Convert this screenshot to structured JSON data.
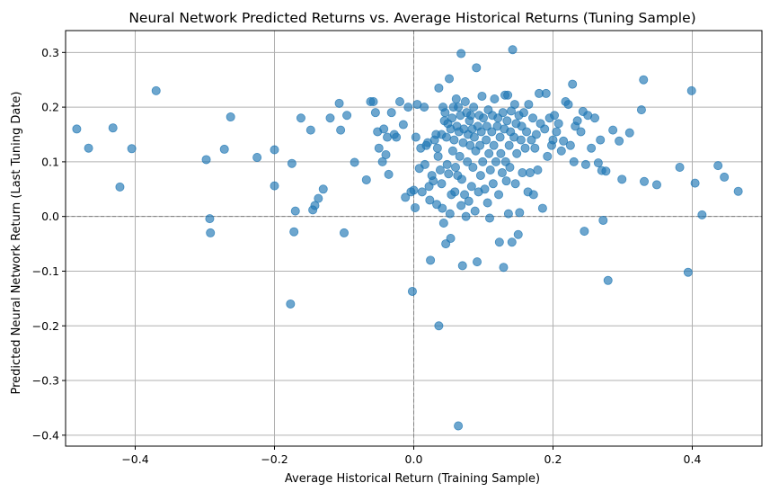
{
  "chart_data": {
    "type": "scatter",
    "title": "Neural Network Predicted Returns vs. Average Historical Returns (Tuning Sample)",
    "xlabel": "Average Historical Return (Training Sample)",
    "ylabel": "Predicted Neural Network Return (Last Tuning Date)",
    "xlim": [
      -0.5,
      0.5
    ],
    "ylim": [
      -0.42,
      0.34
    ],
    "xticks": [
      -0.4,
      -0.2,
      0.0,
      0.2,
      0.4
    ],
    "yticks": [
      -0.4,
      -0.3,
      -0.2,
      -0.1,
      0.0,
      0.1,
      0.2,
      0.3
    ],
    "xtick_labels": [
      "−0.4",
      "−0.2",
      "0.0",
      "0.2",
      "0.4"
    ],
    "ytick_labels": [
      "−0.4",
      "−0.3",
      "−0.2",
      "−0.1",
      "0.0",
      "0.1",
      "0.2",
      "0.3"
    ],
    "grid": true,
    "reference_lines": {
      "x": 0.0,
      "y": 0.0,
      "style": "dashed"
    },
    "colors": {
      "marker": "#1f77b4",
      "grid": "#b0b0b0",
      "reference": "#808080"
    },
    "marker_alpha": 0.65,
    "points": [
      [
        -0.484,
        0.16
      ],
      [
        -0.467,
        0.125
      ],
      [
        -0.432,
        0.162
      ],
      [
        -0.422,
        0.054
      ],
      [
        -0.405,
        0.124
      ],
      [
        -0.37,
        0.23
      ],
      [
        -0.298,
        0.104
      ],
      [
        -0.293,
        -0.004
      ],
      [
        -0.292,
        -0.03
      ],
      [
        -0.272,
        0.123
      ],
      [
        -0.263,
        0.182
      ],
      [
        -0.225,
        0.108
      ],
      [
        -0.2,
        0.122
      ],
      [
        -0.2,
        0.056
      ],
      [
        -0.177,
        -0.16
      ],
      [
        -0.175,
        0.097
      ],
      [
        -0.172,
        -0.028
      ],
      [
        -0.17,
        0.01
      ],
      [
        -0.162,
        0.18
      ],
      [
        -0.148,
        0.158
      ],
      [
        -0.145,
        0.012
      ],
      [
        -0.142,
        0.02
      ],
      [
        -0.137,
        0.033
      ],
      [
        -0.13,
        0.05
      ],
      [
        -0.12,
        0.18
      ],
      [
        -0.107,
        0.207
      ],
      [
        -0.105,
        0.158
      ],
      [
        -0.1,
        -0.03
      ],
      [
        -0.096,
        0.185
      ],
      [
        -0.085,
        0.099
      ],
      [
        -0.068,
        0.067
      ],
      [
        -0.062,
        0.21
      ],
      [
        -0.058,
        0.21
      ],
      [
        -0.055,
        0.19
      ],
      [
        -0.052,
        0.155
      ],
      [
        -0.05,
        0.125
      ],
      [
        -0.045,
        0.1
      ],
      [
        -0.043,
        0.16
      ],
      [
        -0.04,
        0.113
      ],
      [
        -0.038,
        0.145
      ],
      [
        -0.036,
        0.077
      ],
      [
        -0.032,
        0.19
      ],
      [
        -0.028,
        0.15
      ],
      [
        -0.025,
        0.145
      ],
      [
        -0.02,
        0.21
      ],
      [
        -0.015,
        0.168
      ],
      [
        -0.012,
        0.035
      ],
      [
        -0.008,
        0.2
      ],
      [
        -0.004,
        0.045
      ],
      [
        -0.002,
        -0.137
      ],
      [
        0.0,
        0.048
      ],
      [
        0.002,
        0.016
      ],
      [
        0.003,
        0.145
      ],
      [
        0.005,
        0.205
      ],
      [
        0.008,
        0.088
      ],
      [
        0.01,
        0.125
      ],
      [
        0.012,
        0.045
      ],
      [
        0.015,
        0.2
      ],
      [
        0.016,
        0.095
      ],
      [
        0.018,
        0.13
      ],
      [
        0.02,
        0.135
      ],
      [
        0.022,
        0.055
      ],
      [
        0.023,
        0.03
      ],
      [
        0.024,
        -0.08
      ],
      [
        0.026,
        0.075
      ],
      [
        0.028,
        0.065
      ],
      [
        0.03,
        0.14
      ],
      [
        0.032,
        0.15
      ],
      [
        0.033,
        0.022
      ],
      [
        0.034,
        0.125
      ],
      [
        0.035,
        0.11
      ],
      [
        0.036,
        0.235
      ],
      [
        0.036,
        -0.2
      ],
      [
        0.038,
        0.085
      ],
      [
        0.04,
        0.15
      ],
      [
        0.04,
        0.06
      ],
      [
        0.041,
        0.015
      ],
      [
        0.042,
        0.2
      ],
      [
        0.043,
        -0.012
      ],
      [
        0.044,
        0.175
      ],
      [
        0.045,
        0.19
      ],
      [
        0.046,
        -0.05
      ],
      [
        0.047,
        0.145
      ],
      [
        0.048,
        0.095
      ],
      [
        0.049,
        0.17
      ],
      [
        0.05,
        0.078
      ],
      [
        0.051,
        0.252
      ],
      [
        0.052,
        0.005
      ],
      [
        0.053,
        -0.04
      ],
      [
        0.053,
        0.16
      ],
      [
        0.054,
        0.04
      ],
      [
        0.055,
        0.18
      ],
      [
        0.056,
        0.12
      ],
      [
        0.057,
        0.2
      ],
      [
        0.058,
        0.14
      ],
      [
        0.059,
        0.045
      ],
      [
        0.06,
        0.09
      ],
      [
        0.061,
        0.215
      ],
      [
        0.062,
        0.165
      ],
      [
        0.063,
        0.075
      ],
      [
        0.064,
        0.2
      ],
      [
        0.064,
        -0.383
      ],
      [
        0.065,
        0.155
      ],
      [
        0.066,
        0.11
      ],
      [
        0.067,
        0.185
      ],
      [
        0.068,
        0.298
      ],
      [
        0.068,
        0.02
      ],
      [
        0.069,
        0.068
      ],
      [
        0.07,
        -0.09
      ],
      [
        0.071,
        0.135
      ],
      [
        0.072,
        0.16
      ],
      [
        0.073,
        0.04
      ],
      [
        0.074,
        0.21
      ],
      [
        0.075,
        0.0
      ],
      [
        0.076,
        0.19
      ],
      [
        0.077,
        0.1
      ],
      [
        0.078,
        0.15
      ],
      [
        0.079,
        0.028
      ],
      [
        0.08,
        0.175
      ],
      [
        0.081,
        0.13
      ],
      [
        0.082,
        0.185
      ],
      [
        0.083,
        0.055
      ],
      [
        0.084,
        0.16
      ],
      [
        0.085,
        0.09
      ],
      [
        0.086,
        0.2
      ],
      [
        0.087,
        0.145
      ],
      [
        0.088,
        0.01
      ],
      [
        0.089,
        0.12
      ],
      [
        0.09,
        0.272
      ],
      [
        0.091,
        -0.083
      ],
      [
        0.092,
        0.165
      ],
      [
        0.093,
        0.045
      ],
      [
        0.094,
        0.185
      ],
      [
        0.095,
        0.13
      ],
      [
        0.096,
        0.075
      ],
      [
        0.097,
        0.155
      ],
      [
        0.098,
        0.22
      ],
      [
        0.099,
        0.1
      ],
      [
        0.1,
        0.18
      ],
      [
        0.102,
        0.05
      ],
      [
        0.104,
        0.14
      ],
      [
        0.105,
        0.165
      ],
      [
        0.106,
        0.025
      ],
      [
        0.107,
        0.195
      ],
      [
        0.108,
        0.115
      ],
      [
        0.109,
        -0.003
      ],
      [
        0.11,
        0.085
      ],
      [
        0.112,
        0.155
      ],
      [
        0.113,
        0.185
      ],
      [
        0.114,
        0.06
      ],
      [
        0.115,
        0.13
      ],
      [
        0.116,
        0.215
      ],
      [
        0.118,
        0.1
      ],
      [
        0.12,
        0.165
      ],
      [
        0.121,
        0.18
      ],
      [
        0.122,
        0.04
      ],
      [
        0.123,
        -0.047
      ],
      [
        0.124,
        0.145
      ],
      [
        0.125,
        0.115
      ],
      [
        0.127,
        0.08
      ],
      [
        0.128,
        0.19
      ],
      [
        0.129,
        -0.093
      ],
      [
        0.13,
        0.16
      ],
      [
        0.131,
        0.222
      ],
      [
        0.132,
        0.1
      ],
      [
        0.133,
        0.065
      ],
      [
        0.134,
        0.175
      ],
      [
        0.135,
        0.222
      ],
      [
        0.136,
        0.005
      ],
      [
        0.137,
        0.13
      ],
      [
        0.138,
        0.09
      ],
      [
        0.139,
        0.155
      ],
      [
        0.14,
        0.193
      ],
      [
        0.141,
        -0.047
      ],
      [
        0.142,
        0.305
      ],
      [
        0.144,
        0.145
      ],
      [
        0.145,
        0.205
      ],
      [
        0.146,
        0.06
      ],
      [
        0.147,
        0.17
      ],
      [
        0.148,
        0.115
      ],
      [
        0.15,
        -0.033
      ],
      [
        0.151,
        0.185
      ],
      [
        0.152,
        0.007
      ],
      [
        0.154,
        0.14
      ],
      [
        0.155,
        0.165
      ],
      [
        0.156,
        0.08
      ],
      [
        0.158,
        0.19
      ],
      [
        0.16,
        0.125
      ],
      [
        0.162,
        0.155
      ],
      [
        0.164,
        0.045
      ],
      [
        0.165,
        0.205
      ],
      [
        0.167,
        0.08
      ],
      [
        0.169,
        0.14
      ],
      [
        0.171,
        0.18
      ],
      [
        0.172,
        0.04
      ],
      [
        0.174,
        0.125
      ],
      [
        0.176,
        0.15
      ],
      [
        0.178,
        0.085
      ],
      [
        0.18,
        0.225
      ],
      [
        0.182,
        0.17
      ],
      [
        0.185,
        0.015
      ],
      [
        0.188,
        0.16
      ],
      [
        0.19,
        0.225
      ],
      [
        0.192,
        0.11
      ],
      [
        0.195,
        0.18
      ],
      [
        0.198,
        0.13
      ],
      [
        0.2,
        0.14
      ],
      [
        0.202,
        0.185
      ],
      [
        0.205,
        0.155
      ],
      [
        0.208,
        0.17
      ],
      [
        0.212,
        0.12
      ],
      [
        0.215,
        0.138
      ],
      [
        0.218,
        0.21
      ],
      [
        0.222,
        0.205
      ],
      [
        0.225,
        0.13
      ],
      [
        0.228,
        0.242
      ],
      [
        0.23,
        0.1
      ],
      [
        0.232,
        0.165
      ],
      [
        0.235,
        0.175
      ],
      [
        0.24,
        0.155
      ],
      [
        0.243,
        0.192
      ],
      [
        0.245,
        -0.027
      ],
      [
        0.247,
        0.095
      ],
      [
        0.25,
        0.185
      ],
      [
        0.255,
        0.125
      ],
      [
        0.26,
        0.18
      ],
      [
        0.265,
        0.098
      ],
      [
        0.268,
        0.14
      ],
      [
        0.27,
        0.084
      ],
      [
        0.272,
        -0.007
      ],
      [
        0.276,
        0.083
      ],
      [
        0.279,
        -0.117
      ],
      [
        0.286,
        0.158
      ],
      [
        0.295,
        0.138
      ],
      [
        0.299,
        0.068
      ],
      [
        0.31,
        0.153
      ],
      [
        0.327,
        0.195
      ],
      [
        0.33,
        0.25
      ],
      [
        0.331,
        0.064
      ],
      [
        0.349,
        0.058
      ],
      [
        0.382,
        0.09
      ],
      [
        0.394,
        -0.102
      ],
      [
        0.399,
        0.23
      ],
      [
        0.404,
        0.061
      ],
      [
        0.414,
        0.003
      ],
      [
        0.437,
        0.093
      ],
      [
        0.446,
        0.072
      ],
      [
        0.466,
        0.046
      ]
    ]
  }
}
